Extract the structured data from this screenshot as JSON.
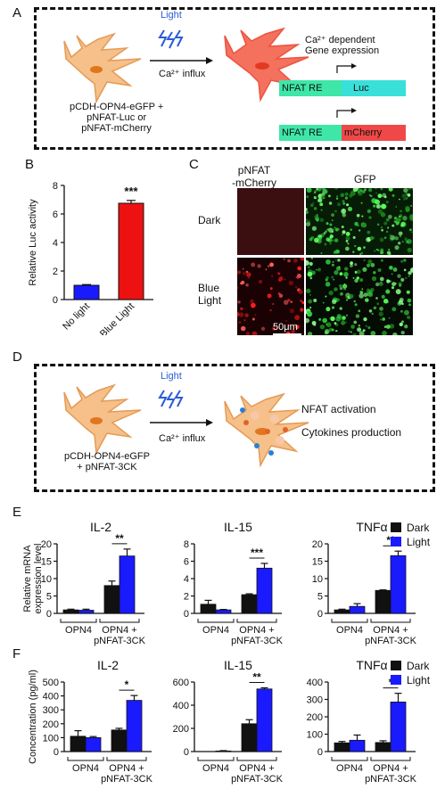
{
  "panels": {
    "A": {
      "letter": "A",
      "light_label": "Light",
      "influx_label": "Ca²⁺ influx",
      "construct_lines": [
        "pCDH-OPN4-eGFP +",
        "pNFAT-Luc or",
        "pNFAT-mCherry"
      ],
      "expression_lines": [
        "Ca²⁺ dependent",
        "Gene expression"
      ],
      "reporter1": {
        "re": "NFAT RE",
        "gene": "Luc"
      },
      "reporter2": {
        "re": "NFAT RE",
        "gene": "mCherry"
      }
    },
    "B": {
      "letter": "B"
    },
    "C": {
      "letter": "C",
      "col1": [
        "pNFAT",
        "-mCherry"
      ],
      "col2": "GFP",
      "row1": "Dark",
      "row2": [
        "Blue",
        "Light"
      ],
      "scale": "50μm"
    },
    "D": {
      "letter": "D",
      "light_label": "Light",
      "influx_label": "Ca²⁺ influx",
      "construct_lines": [
        "pCDH-OPN4-eGFP",
        "+ pNFAT-3CK"
      ],
      "outputs": [
        "NFAT activation",
        "Cytokines production"
      ]
    },
    "E": {
      "letter": "E"
    },
    "F": {
      "letter": "F"
    }
  },
  "colors": {
    "dark": "#111111",
    "light": "#1a1aff",
    "red_bar": "#ee1111",
    "blue_bar": "#1a1aff",
    "cell": "#f5c08a",
    "cell_red": "#f46a55",
    "lightning": "#2a5bd7"
  },
  "chart_data": [
    {
      "type": "bar",
      "panel": "B",
      "categories": [
        "No light",
        "Blue Light"
      ],
      "values": [
        1.0,
        6.75
      ],
      "errors": [
        0.05,
        0.2
      ],
      "colors": [
        "#1a1aff",
        "#ee1111"
      ],
      "ylabel": "Relative Luc activity",
      "ylim": [
        0,
        8
      ],
      "yticks": [
        0,
        2,
        4,
        6,
        8
      ],
      "significance": "***"
    },
    {
      "type": "bar",
      "panel": "E",
      "title": "IL-2",
      "groups": [
        "OPN4",
        "OPN4 + pNFAT-3CK"
      ],
      "series": [
        {
          "name": "Dark",
          "values": [
            1.0,
            8.0
          ],
          "errors": [
            0.2,
            1.3
          ]
        },
        {
          "name": "Light",
          "values": [
            0.9,
            16.5
          ],
          "errors": [
            0.3,
            2.0
          ]
        }
      ],
      "ylabel": "Relative mRNA expression level",
      "ylim": [
        0,
        20
      ],
      "yticks": [
        0,
        5,
        10,
        15,
        20
      ],
      "significance": "**"
    },
    {
      "type": "bar",
      "panel": "E",
      "title": "IL-15",
      "groups": [
        "OPN4",
        "OPN4 + pNFAT-3CK"
      ],
      "series": [
        {
          "name": "Dark",
          "values": [
            1.05,
            2.15
          ],
          "errors": [
            0.45,
            0.1
          ]
        },
        {
          "name": "Light",
          "values": [
            0.4,
            5.2
          ],
          "errors": [
            0.05,
            0.55
          ]
        }
      ],
      "ylim": [
        0,
        8
      ],
      "yticks": [
        0,
        2,
        4,
        6,
        8
      ],
      "significance": "***"
    },
    {
      "type": "bar",
      "panel": "E",
      "title": "TNFα",
      "groups": [
        "OPN4",
        "OPN4 + pNFAT-3CK"
      ],
      "series": [
        {
          "name": "Dark",
          "values": [
            1.0,
            6.6
          ],
          "errors": [
            0.2,
            0.15
          ]
        },
        {
          "name": "Light",
          "values": [
            2.0,
            16.6
          ],
          "errors": [
            0.8,
            1.3
          ]
        }
      ],
      "ylim": [
        0,
        20
      ],
      "yticks": [
        0,
        5,
        10,
        15,
        20
      ],
      "significance": "**"
    },
    {
      "type": "bar",
      "panel": "F",
      "title": "IL-2",
      "groups": [
        "OPN4",
        "OPN4 + pNFAT-3CK"
      ],
      "series": [
        {
          "name": "Dark",
          "values": [
            110,
            155
          ],
          "errors": [
            40,
            12
          ]
        },
        {
          "name": "Light",
          "values": [
            100,
            368
          ],
          "errors": [
            8,
            35
          ]
        }
      ],
      "ylabel": "Concentration (pg/ml)",
      "ylim": [
        0,
        500
      ],
      "yticks": [
        0,
        100,
        200,
        300,
        400,
        500
      ],
      "significance": "*"
    },
    {
      "type": "bar",
      "panel": "F",
      "title": "IL-15",
      "groups": [
        "OPN4",
        "OPN4 + pNFAT-3CK"
      ],
      "series": [
        {
          "name": "Dark",
          "values": [
            0,
            240
          ],
          "errors": [
            0,
            35
          ]
        },
        {
          "name": "Light",
          "values": [
            5,
            540
          ],
          "errors": [
            3,
            10
          ]
        }
      ],
      "ylim": [
        0,
        600
      ],
      "yticks": [
        0,
        200,
        400,
        600
      ],
      "significance": "**"
    },
    {
      "type": "bar",
      "panel": "F",
      "title": "TNFα",
      "groups": [
        "OPN4",
        "OPN4 + pNFAT-3CK"
      ],
      "series": [
        {
          "name": "Dark",
          "values": [
            50,
            52
          ],
          "errors": [
            8,
            10
          ]
        },
        {
          "name": "Light",
          "values": [
            65,
            285
          ],
          "errors": [
            30,
            50
          ]
        }
      ],
      "ylim": [
        0,
        400
      ],
      "yticks": [
        0,
        100,
        200,
        300,
        400
      ],
      "significance": "*"
    }
  ],
  "legend": {
    "items": [
      {
        "label": "Dark",
        "color": "#111111"
      },
      {
        "label": "Light",
        "color": "#1a1aff"
      }
    ]
  }
}
